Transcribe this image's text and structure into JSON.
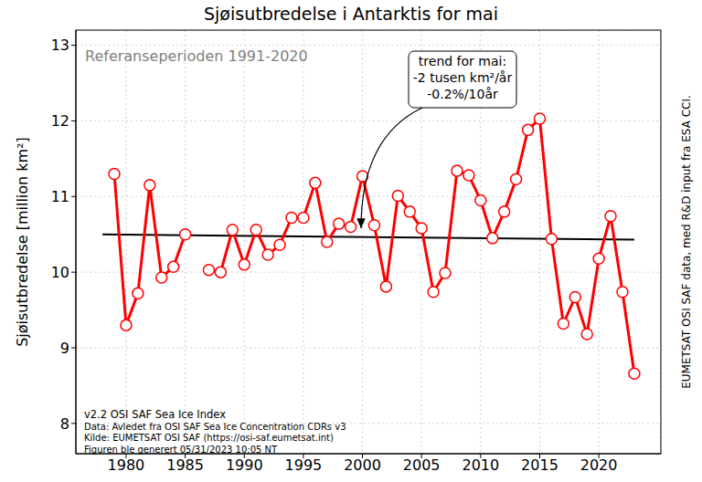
{
  "chart_data": {
    "type": "line",
    "title": "Sjøisutbredelse i Antarktis for mai",
    "y_label": "Sjøisutbredelse [million km²]",
    "x": [
      1979,
      1980,
      1981,
      1982,
      1983,
      1984,
      1985,
      1986,
      1987,
      1988,
      1989,
      1990,
      1991,
      1992,
      1993,
      1994,
      1995,
      1996,
      1997,
      1998,
      1999,
      2000,
      2001,
      2002,
      2003,
      2004,
      2005,
      2006,
      2007,
      2008,
      2009,
      2010,
      2011,
      2012,
      2013,
      2014,
      2015,
      2016,
      2017,
      2018,
      2019,
      2020,
      2021,
      2022,
      2023
    ],
    "values": [
      11.3,
      9.3,
      9.72,
      11.15,
      9.93,
      10.07,
      10.5,
      null,
      10.03,
      10.0,
      10.56,
      10.1,
      10.56,
      10.23,
      10.36,
      10.72,
      10.72,
      11.18,
      10.4,
      10.64,
      10.6,
      11.27,
      10.62,
      9.81,
      11.01,
      10.8,
      10.58,
      9.74,
      9.99,
      11.34,
      11.28,
      10.95,
      10.45,
      10.8,
      11.23,
      11.88,
      12.03,
      10.44,
      9.32,
      9.67,
      9.18,
      10.18,
      10.74,
      9.74,
      8.66
    ],
    "color": "#ff0000",
    "marker": "o",
    "trend": {
      "x": [
        1978,
        2023
      ],
      "values": [
        10.5,
        10.43
      ],
      "color": "#000000"
    },
    "xlim": [
      1975.75,
      2025.25
    ],
    "xticks": [
      1980,
      1985,
      1990,
      1995,
      2000,
      2005,
      2010,
      2015,
      2020
    ],
    "ylim": [
      7.6,
      13.2
    ],
    "yticks": [
      8,
      9,
      10,
      11,
      12,
      13
    ],
    "grid": true,
    "annotations": {
      "reference": "Referanseperioden 1991-2020",
      "trend": [
        "trend for mai:",
        "-2 tusen km²/år",
        "-0.2%/10år"
      ],
      "notes": [
        "v2.2 OSI SAF Sea Ice Index",
        "Data: Avledet fra OSI SAF Sea Ice Concentration CDRs v3",
        "Kilde: EUMETSAT OSI SAF (https://osi-saf.eumetsat.int)",
        "Figuren ble generert 05/31/2023 10:05 NT"
      ],
      "credit": "EUMETSAT OSI SAF data, med R&D input fra ESA CCI."
    }
  }
}
